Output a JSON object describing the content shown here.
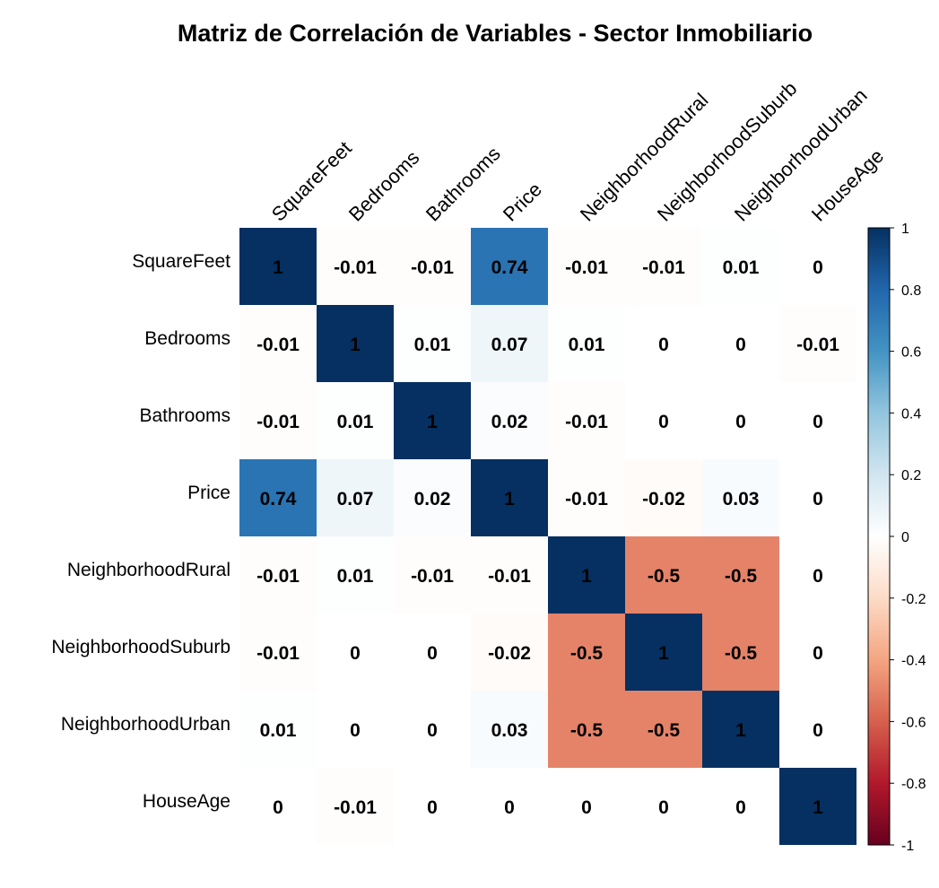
{
  "chart_data": {
    "type": "heatmap",
    "title": "Matriz de Correlación de Variables - Sector Inmobiliario",
    "variables": [
      "SquareFeet",
      "Bedrooms",
      "Bathrooms",
      "Price",
      "NeighborhoodRural",
      "NeighborhoodSuburb",
      "NeighborhoodUrban",
      "HouseAge"
    ],
    "matrix": [
      [
        1,
        -0.01,
        -0.01,
        0.74,
        -0.01,
        -0.01,
        0.01,
        0
      ],
      [
        -0.01,
        1,
        0.01,
        0.07,
        0.01,
        0,
        0,
        -0.01
      ],
      [
        -0.01,
        0.01,
        1,
        0.02,
        -0.01,
        0,
        0,
        0
      ],
      [
        0.74,
        0.07,
        0.02,
        1,
        -0.01,
        -0.02,
        0.03,
        0
      ],
      [
        -0.01,
        0.01,
        -0.01,
        -0.01,
        1,
        -0.5,
        -0.5,
        0
      ],
      [
        -0.01,
        0,
        0,
        -0.02,
        -0.5,
        1,
        -0.5,
        0
      ],
      [
        0.01,
        0,
        0,
        0.03,
        -0.5,
        -0.5,
        1,
        0
      ],
      [
        0,
        -0.01,
        0,
        0,
        0,
        0,
        0,
        1
      ]
    ],
    "colorbar": {
      "range": [
        -1,
        1
      ],
      "ticks": [
        1,
        0.8,
        0.6,
        0.4,
        0.2,
        0,
        -0.2,
        -0.4,
        -0.6,
        -0.8,
        -1
      ],
      "colors": [
        "#67001F",
        "#B2182B",
        "#D6604D",
        "#F4A582",
        "#FDDBC7",
        "#FFFFFF",
        "#D1E5F0",
        "#92C5DE",
        "#4393C3",
        "#2166AC",
        "#053061"
      ]
    }
  }
}
